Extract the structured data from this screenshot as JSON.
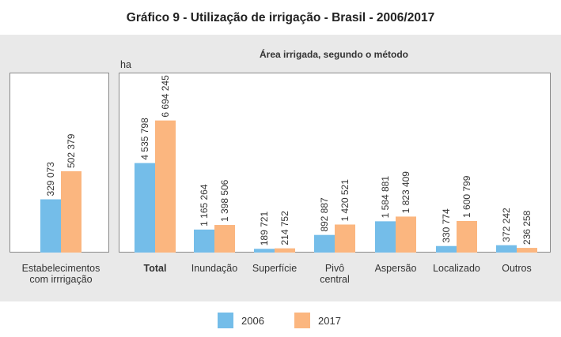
{
  "title": "Gráfico 9 - Utilização de irrigação - Brasil - 2006/2017",
  "colors": {
    "s2006": "#74bde9",
    "s2017": "#fbb67f",
    "panel_bg": "#e9e9e9",
    "plot_bg": "#ffffff",
    "border": "#8a8a8a"
  },
  "chart_data": [
    {
      "type": "bar",
      "title": "",
      "xlabel": "",
      "ylabel": "",
      "categories": [
        "Estabelecimentos com irrrigação"
      ],
      "category_lines": [
        [
          "Estabelecimentos",
          "com irrrigação"
        ]
      ],
      "series": [
        {
          "name": "2006",
          "values": [
            329073
          ]
        },
        {
          "name": "2017",
          "values": [
            502379
          ]
        }
      ],
      "value_labels": [
        [
          "329 073"
        ],
        [
          "502 379"
        ]
      ],
      "ylim": [
        0,
        1000000
      ]
    },
    {
      "type": "bar",
      "title": "Área irrigada, segundo o método",
      "xlabel": "",
      "ylabel": "ha",
      "categories": [
        "Total",
        "Inundação",
        "Superfície",
        "Pivô central",
        "Aspersão",
        "Localizado",
        "Outros"
      ],
      "category_lines": [
        [
          "Total"
        ],
        [
          "Inundação"
        ],
        [
          "Superfície"
        ],
        [
          "Pivô",
          "central"
        ],
        [
          "Aspersão"
        ],
        [
          "Localizado"
        ],
        [
          "Outros"
        ]
      ],
      "bold_categories": [
        "Total"
      ],
      "series": [
        {
          "name": "2006",
          "values": [
            4535798,
            1165264,
            189721,
            892887,
            1584881,
            330774,
            372242
          ]
        },
        {
          "name": "2017",
          "values": [
            6694245,
            1398506,
            214752,
            1420521,
            1823409,
            1600799,
            236258
          ]
        }
      ],
      "value_labels": [
        [
          "4 535 798",
          "1 165 264",
          "189 721",
          "892 887",
          "1 584 881",
          "330 774",
          "372 242"
        ],
        [
          "6 694 245",
          "1 398 506",
          "214 752",
          "1 420 521",
          "1 823 409",
          "1 600 799",
          "236 258"
        ]
      ],
      "ylim": [
        0,
        8000000
      ]
    }
  ],
  "legend": [
    {
      "label": "2006",
      "color": "#74bde9"
    },
    {
      "label": "2017",
      "color": "#fbb67f"
    }
  ]
}
